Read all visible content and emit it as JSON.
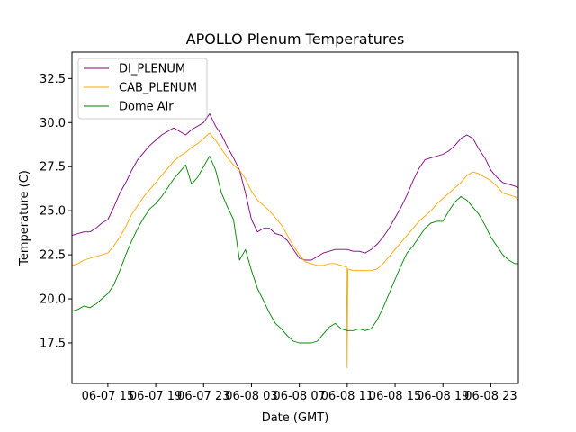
{
  "chart_data": {
    "type": "line",
    "title": "APOLLO Plenum Temperatures",
    "xlabel": "Date (GMT)",
    "ylabel": "Temperature (C)",
    "x_unit": "hours since 06-07 00:00 GMT",
    "xlim": [
      12.0,
      49.3
    ],
    "ylim": [
      15.2,
      34.0
    ],
    "grid": false,
    "legend_position": "top-left",
    "x_ticks": [
      {
        "value": 15,
        "label": "06-07 15"
      },
      {
        "value": 19,
        "label": "06-07 19"
      },
      {
        "value": 23,
        "label": "06-07 23"
      },
      {
        "value": 27,
        "label": "06-08 03"
      },
      {
        "value": 31,
        "label": "06-08 07"
      },
      {
        "value": 35,
        "label": "06-08 11"
      },
      {
        "value": 39,
        "label": "06-08 15"
      },
      {
        "value": 43,
        "label": "06-08 19"
      },
      {
        "value": 47,
        "label": "06-08 23"
      }
    ],
    "y_ticks": [
      {
        "value": 17.5,
        "label": "17.5"
      },
      {
        "value": 20.0,
        "label": "20.0"
      },
      {
        "value": 22.5,
        "label": "22.5"
      },
      {
        "value": 25.0,
        "label": "25.0"
      },
      {
        "value": 27.5,
        "label": "27.5"
      },
      {
        "value": 30.0,
        "label": "30.0"
      },
      {
        "value": 32.5,
        "label": "32.5"
      }
    ],
    "series": [
      {
        "name": "DI_PLENUM",
        "color": "#800080",
        "x": [
          12.0,
          12.5,
          13.0,
          13.5,
          14.0,
          14.5,
          15.0,
          15.5,
          16.0,
          16.5,
          17.0,
          17.5,
          18.0,
          18.5,
          19.0,
          19.5,
          20.0,
          20.5,
          21.0,
          21.5,
          22.0,
          22.5,
          23.0,
          23.5,
          24.0,
          24.5,
          25.0,
          25.5,
          26.0,
          26.5,
          27.0,
          27.5,
          28.0,
          28.5,
          29.0,
          29.5,
          30.0,
          30.5,
          31.0,
          31.5,
          32.0,
          32.5,
          33.0,
          33.5,
          34.0,
          34.5,
          35.0,
          35.5,
          36.0,
          36.5,
          37.0,
          37.5,
          38.0,
          38.5,
          39.0,
          39.5,
          40.0,
          40.5,
          41.0,
          41.5,
          42.0,
          42.5,
          43.0,
          43.5,
          44.0,
          44.5,
          45.0,
          45.5,
          46.0,
          46.5,
          47.0,
          47.5,
          48.0,
          48.5,
          49.0,
          49.3
        ],
        "values": [
          23.6,
          23.7,
          23.8,
          23.8,
          24.0,
          24.3,
          24.5,
          25.2,
          26.0,
          26.6,
          27.3,
          27.9,
          28.3,
          28.7,
          29.0,
          29.3,
          29.5,
          29.7,
          29.5,
          29.3,
          29.6,
          29.8,
          30.0,
          30.5,
          29.8,
          29.3,
          28.6,
          28.0,
          27.3,
          26.0,
          24.5,
          23.8,
          24.0,
          24.0,
          23.7,
          23.6,
          23.3,
          22.8,
          22.3,
          22.2,
          22.2,
          22.4,
          22.6,
          22.7,
          22.8,
          22.8,
          22.8,
          22.7,
          22.7,
          22.6,
          22.8,
          23.1,
          23.5,
          24.0,
          24.6,
          25.2,
          25.9,
          26.7,
          27.4,
          27.9,
          28.0,
          28.1,
          28.2,
          28.4,
          28.7,
          29.1,
          29.3,
          29.1,
          28.5,
          28.0,
          27.3,
          26.9,
          26.6,
          26.5,
          26.4,
          26.3
        ]
      },
      {
        "name": "CAB_PLENUM",
        "color": "#FFA500",
        "x": [
          12.0,
          12.5,
          13.0,
          13.5,
          14.0,
          14.5,
          15.0,
          15.5,
          16.0,
          16.5,
          17.0,
          17.5,
          18.0,
          18.5,
          19.0,
          19.5,
          20.0,
          20.5,
          21.0,
          21.5,
          22.0,
          22.5,
          23.0,
          23.5,
          24.0,
          24.5,
          25.0,
          25.5,
          26.0,
          26.5,
          27.0,
          27.5,
          28.0,
          28.5,
          29.0,
          29.5,
          30.0,
          30.5,
          31.0,
          31.5,
          32.0,
          32.5,
          33.0,
          33.5,
          34.0,
          34.5,
          34.95,
          35.0,
          35.05,
          35.5,
          36.0,
          36.5,
          37.0,
          37.5,
          38.0,
          38.5,
          39.0,
          39.5,
          40.0,
          40.5,
          41.0,
          41.5,
          42.0,
          42.5,
          43.0,
          43.5,
          44.0,
          44.5,
          45.0,
          45.5,
          46.0,
          46.5,
          47.0,
          47.5,
          48.0,
          48.5,
          49.0,
          49.3
        ],
        "values": [
          21.9,
          22.0,
          22.2,
          22.3,
          22.4,
          22.5,
          22.6,
          23.0,
          23.5,
          24.1,
          24.8,
          25.3,
          25.8,
          26.2,
          26.6,
          27.0,
          27.4,
          27.8,
          28.1,
          28.3,
          28.6,
          28.8,
          29.1,
          29.4,
          29.0,
          28.5,
          28.0,
          27.6,
          27.3,
          26.8,
          26.1,
          25.6,
          25.3,
          25.0,
          24.6,
          24.2,
          23.6,
          23.0,
          22.5,
          22.1,
          22.0,
          21.9,
          21.9,
          22.0,
          22.0,
          21.9,
          21.8,
          16.1,
          21.7,
          21.6,
          21.6,
          21.6,
          21.6,
          21.7,
          22.0,
          22.4,
          22.8,
          23.2,
          23.6,
          24.0,
          24.4,
          24.7,
          25.0,
          25.4,
          25.7,
          26.0,
          26.3,
          26.6,
          27.0,
          27.2,
          27.1,
          26.9,
          26.7,
          26.4,
          26.0,
          25.9,
          25.8,
          25.6
        ]
      },
      {
        "name": "Dome Air",
        "color": "#008000",
        "x": [
          12.0,
          12.5,
          13.0,
          13.5,
          14.0,
          14.5,
          15.0,
          15.5,
          16.0,
          16.5,
          17.0,
          17.5,
          18.0,
          18.5,
          19.0,
          19.5,
          20.0,
          20.5,
          21.0,
          21.5,
          22.0,
          22.5,
          23.0,
          23.5,
          24.0,
          24.5,
          25.0,
          25.5,
          26.0,
          26.5,
          27.0,
          27.5,
          28.0,
          28.5,
          29.0,
          29.5,
          30.0,
          30.5,
          31.0,
          31.5,
          32.0,
          32.5,
          33.0,
          33.5,
          34.0,
          34.5,
          35.0,
          35.5,
          36.0,
          36.5,
          37.0,
          37.5,
          38.0,
          38.5,
          39.0,
          39.5,
          40.0,
          40.5,
          41.0,
          41.5,
          42.0,
          42.5,
          43.0,
          43.5,
          44.0,
          44.5,
          45.0,
          45.5,
          46.0,
          46.5,
          47.0,
          47.5,
          48.0,
          48.5,
          49.0,
          49.3
        ],
        "values": [
          19.3,
          19.4,
          19.6,
          19.5,
          19.7,
          20.0,
          20.3,
          20.8,
          21.6,
          22.5,
          23.3,
          24.0,
          24.6,
          25.1,
          25.4,
          25.8,
          26.3,
          26.8,
          27.2,
          27.6,
          26.5,
          26.9,
          27.5,
          28.1,
          27.3,
          26.0,
          25.2,
          24.5,
          22.2,
          22.8,
          21.6,
          20.6,
          19.9,
          19.2,
          18.6,
          18.3,
          17.9,
          17.6,
          17.5,
          17.5,
          17.5,
          17.6,
          18.0,
          18.4,
          18.6,
          18.3,
          18.2,
          18.2,
          18.3,
          18.2,
          18.3,
          18.8,
          19.5,
          20.3,
          21.1,
          21.9,
          22.6,
          23.0,
          23.5,
          24.0,
          24.3,
          24.4,
          24.4,
          25.0,
          25.5,
          25.8,
          25.6,
          25.2,
          24.8,
          24.2,
          23.5,
          23.0,
          22.5,
          22.2,
          22.0,
          22.0
        ]
      }
    ]
  }
}
